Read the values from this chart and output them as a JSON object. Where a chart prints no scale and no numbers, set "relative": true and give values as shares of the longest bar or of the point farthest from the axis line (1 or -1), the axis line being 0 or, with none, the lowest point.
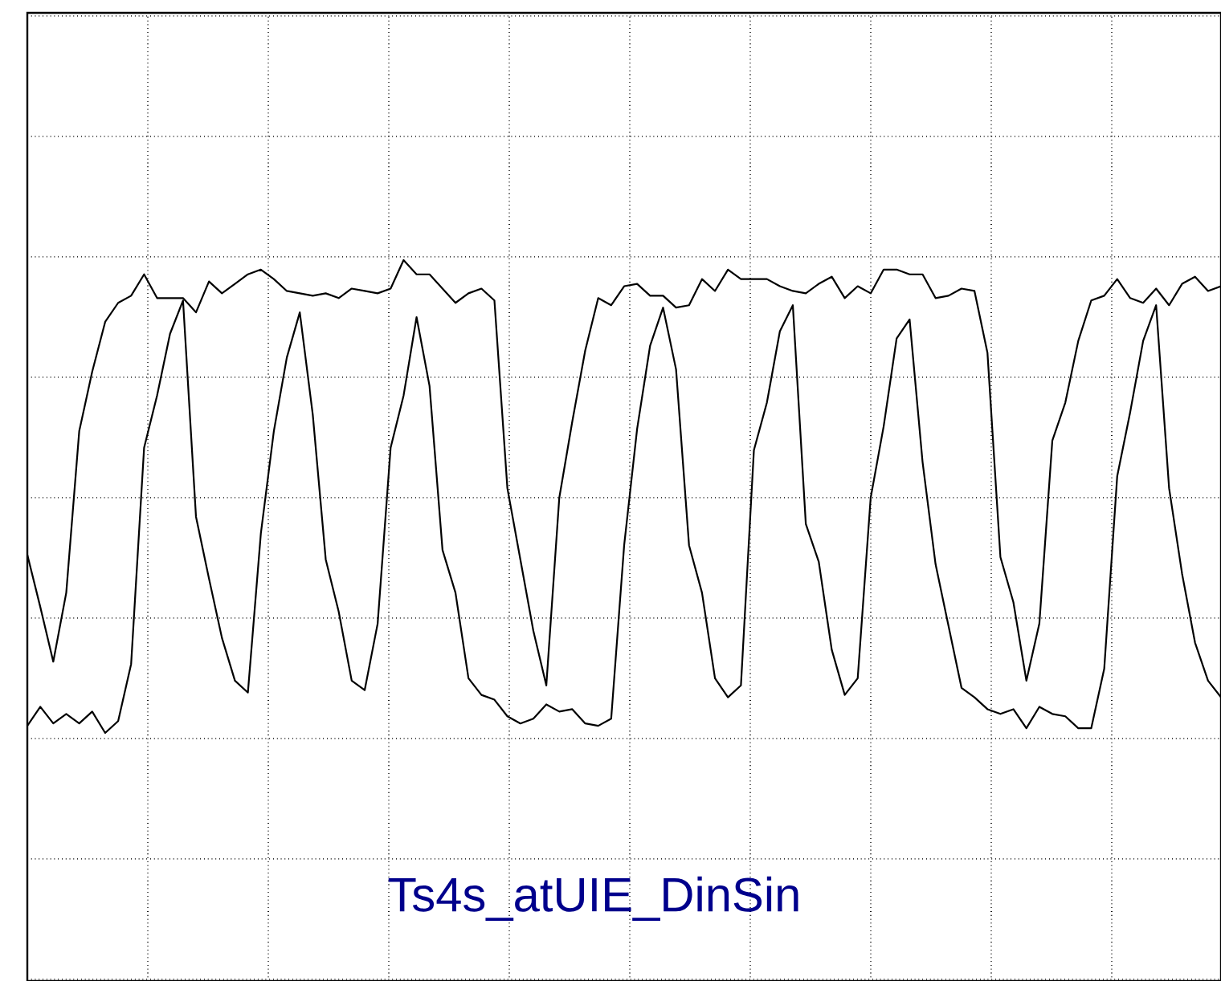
{
  "chart_data": {
    "type": "line",
    "relative": true,
    "grid": true,
    "marker": "none",
    "line_style": "solid",
    "categories": [
      null,
      null,
      null,
      null,
      null,
      null,
      null,
      null,
      null,
      null,
      null,
      null,
      null,
      null,
      null,
      null,
      null,
      null,
      null,
      null,
      null,
      null,
      null,
      null,
      null,
      null,
      null,
      null,
      null,
      null,
      null,
      null,
      null,
      null,
      null,
      null,
      null,
      null,
      null,
      null,
      null,
      null,
      null,
      null,
      null,
      null,
      null,
      null,
      null,
      null,
      null,
      null,
      null,
      null,
      null,
      null,
      null,
      null,
      null,
      null,
      null,
      null,
      null,
      null,
      null,
      null,
      null,
      null,
      null,
      null,
      null,
      null,
      null,
      null,
      null,
      null,
      null,
      null,
      null,
      null,
      null,
      null,
      null,
      null,
      null,
      null,
      null,
      null,
      null,
      null,
      null,
      null,
      null
    ],
    "series": [
      {
        "color": "#000000",
        "values": [
          -0.24,
          -0.46,
          -0.69,
          -0.4,
          0.28,
          0.53,
          0.74,
          0.82,
          0.85,
          0.94,
          0.84,
          0.84,
          0.84,
          0.78,
          0.91,
          0.86,
          0.9,
          0.94,
          0.96,
          0.92,
          0.87,
          0.86,
          0.85,
          0.86,
          0.84,
          0.88,
          0.87,
          0.86,
          0.88,
          1.0,
          0.94,
          0.94,
          0.88,
          0.82,
          0.86,
          0.88,
          0.83,
          0.04,
          -0.26,
          -0.56,
          -0.79,
          0.0,
          0.32,
          0.62,
          0.84,
          0.81,
          0.89,
          0.9,
          0.85,
          0.85,
          0.8,
          0.81,
          0.92,
          0.87,
          0.96,
          0.92,
          0.92,
          0.92,
          0.89,
          0.87,
          0.86,
          0.9,
          0.93,
          0.84,
          0.89,
          0.86,
          0.96,
          0.96,
          0.94,
          0.94,
          0.84,
          0.85,
          0.88,
          0.87,
          0.61,
          -0.25,
          -0.44,
          -0.77,
          -0.53,
          0.24,
          0.4,
          0.66,
          0.83,
          0.85,
          0.92,
          0.84,
          0.82,
          0.88,
          0.81,
          0.9,
          0.93,
          0.87,
          0.89
        ]
      },
      {
        "color": "#000000",
        "values": [
          -0.96,
          -0.88,
          -0.95,
          -0.91,
          -0.95,
          -0.9,
          -0.99,
          -0.94,
          -0.7,
          0.21,
          0.43,
          0.69,
          0.83,
          -0.08,
          -0.34,
          -0.59,
          -0.77,
          -0.82,
          -0.15,
          0.28,
          0.59,
          0.78,
          0.35,
          -0.26,
          -0.48,
          -0.77,
          -0.81,
          -0.53,
          0.21,
          0.43,
          0.76,
          0.47,
          -0.22,
          -0.4,
          -0.76,
          -0.83,
          -0.85,
          -0.92,
          -0.95,
          -0.93,
          -0.87,
          -0.9,
          -0.89,
          -0.95,
          -0.96,
          -0.93,
          -0.2,
          0.29,
          0.64,
          0.8,
          0.54,
          -0.2,
          -0.4,
          -0.76,
          -0.84,
          -0.79,
          0.2,
          0.4,
          0.7,
          0.81,
          -0.11,
          -0.27,
          -0.64,
          -0.83,
          -0.76,
          0.0,
          0.3,
          0.67,
          0.75,
          0.15,
          -0.28,
          -0.54,
          -0.8,
          -0.84,
          -0.89,
          -0.91,
          -0.89,
          -0.97,
          -0.88,
          -0.91,
          -0.92,
          -0.97,
          -0.97,
          -0.72,
          0.09,
          0.36,
          0.66,
          0.81,
          0.04,
          -0.32,
          -0.61,
          -0.77,
          -0.84
        ]
      }
    ],
    "annotations": [
      "Ts4s_atUIE_DinSin"
    ]
  }
}
